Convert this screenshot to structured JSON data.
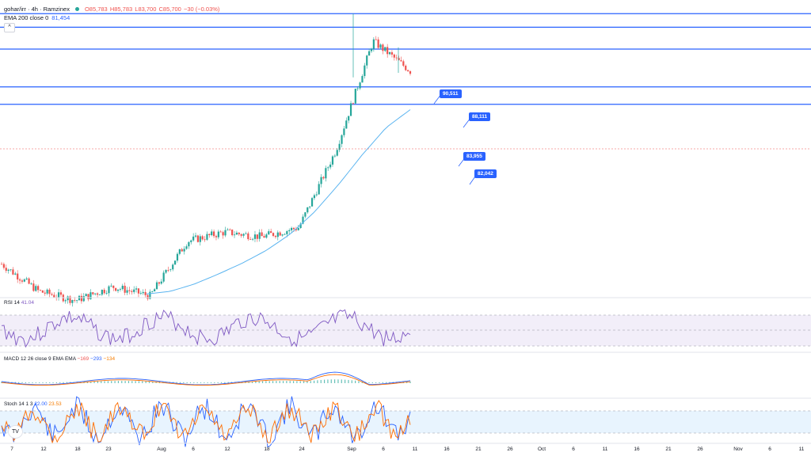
{
  "header": {
    "symbol": "gohar/irr · 4h · Ramzinex",
    "open": "O85,783",
    "high": "H85,783",
    "low": "L83,700",
    "close": "C85,700",
    "change": "−30 (−0.03%)",
    "ema_label": "EMA 200 close 0",
    "ema_value": "81,454"
  },
  "price_levels": [
    {
      "label": "90,511"
    },
    {
      "label": "88,111"
    },
    {
      "label": "83,955"
    },
    {
      "label": "82,042"
    }
  ],
  "indicators": {
    "rsi": {
      "label": "RSI 14",
      "value": "41.04"
    },
    "macd": {
      "label": "MACD 12 26 close 9 EMA EMA",
      "v1": "−169",
      "v2": "−293",
      "v3": "−134"
    },
    "stoch": {
      "label": "Stoch 14 1 3",
      "k": "22.00",
      "d": "23.53"
    }
  },
  "x_axis": [
    "7",
    "12",
    "18",
    "23",
    "Aug",
    "6",
    "12",
    "18",
    "24",
    "Sep",
    "6",
    "11",
    "16",
    "21",
    "26",
    "Oct",
    "6",
    "11",
    "16",
    "21",
    "26",
    "Nov",
    "6",
    "11"
  ],
  "colors": {
    "up": "#26a69a",
    "down": "#ef5350",
    "level": "#2962ff",
    "ema": "#5ab4f0",
    "rsi": "#7e57c2",
    "macd": "#2962ff",
    "signal": "#ff6d00",
    "stoch_k": "#2962ff",
    "stoch_d": "#ff6d00"
  },
  "chart_data": {
    "type": "line",
    "title": "gohar/irr · 4h · Ramzinex",
    "series": [
      {
        "name": "EMA 200 close 0",
        "values": [
          61200,
          61500,
          62300,
          63400,
          64600,
          66000,
          67800,
          70200,
          73200,
          76500,
          79500,
          81454
        ]
      }
    ],
    "x": [
      "Jul 7",
      "Jul 12",
      "Jul 18",
      "Jul 23",
      "Aug",
      "Aug 6",
      "Aug 12",
      "Aug 18",
      "Aug 24",
      "Sep",
      "Sep 6",
      "Sep 10"
    ],
    "close_path": [
      64500,
      61500,
      60500,
      62000,
      61000,
      67000,
      68000,
      67500,
      68500,
      77000,
      89000,
      85700
    ],
    "horizontal_levels": [
      92000,
      90511,
      88111,
      83955,
      82042
    ],
    "ylim": [
      60800,
      93500
    ]
  }
}
